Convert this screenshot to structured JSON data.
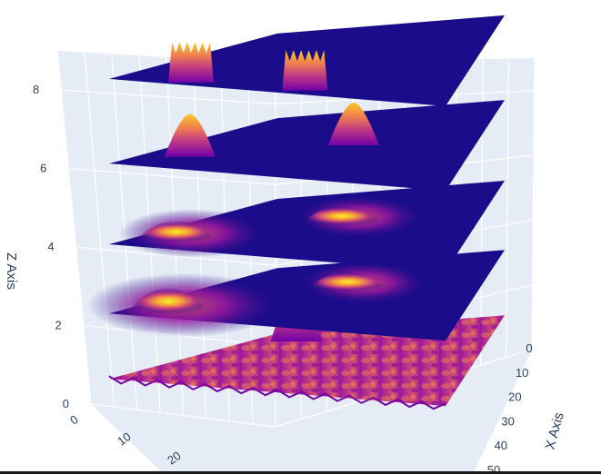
{
  "chart_data": {
    "type": "surface",
    "title": "",
    "xlabel": "X Axis",
    "ylabel": "",
    "zlabel": "Z Axis",
    "x_ticks": [
      "0",
      "10",
      "20",
      "30",
      "40",
      "50"
    ],
    "y_ticks": [
      "0",
      "10",
      "20"
    ],
    "z_ticks": [
      "0",
      "2",
      "4",
      "6",
      "8"
    ],
    "zlim": [
      0,
      9
    ],
    "colorscale": [
      "#0d0887",
      "#46039f",
      "#7201a8",
      "#9c179e",
      "#bd3786",
      "#d8576b",
      "#ed7953",
      "#fb9f3a",
      "#fdca26",
      "#f0f921"
    ],
    "layers": [
      {
        "base_z": 0.3,
        "style": "noisy",
        "peaks": [
          {
            "x": 0.9,
            "y": 0.15,
            "h": 1.0
          }
        ]
      },
      {
        "base_z": 2.0,
        "style": "smooth",
        "peaks": [
          {
            "x": 0.15,
            "y": 0.1,
            "h": 0.9
          },
          {
            "x": 0.6,
            "y": 0.5,
            "h": 0.5
          }
        ]
      },
      {
        "base_z": 3.8,
        "style": "smooth",
        "peaks": [
          {
            "x": 0.2,
            "y": 0.1,
            "h": 0.6
          },
          {
            "x": 0.55,
            "y": 0.5,
            "h": 0.5
          }
        ]
      },
      {
        "base_z": 5.9,
        "style": "peaks",
        "peaks": [
          {
            "x": 0.3,
            "y": 0.1,
            "h": 0.6
          },
          {
            "x": 0.55,
            "y": 0.55,
            "h": 0.6
          }
        ]
      },
      {
        "base_z": 8.1,
        "style": "blocks",
        "peaks": [
          {
            "x": 0.1,
            "y": 0.2,
            "h": 0.9
          },
          {
            "x": 0.1,
            "y": 0.55,
            "h": 0.9
          }
        ]
      }
    ],
    "grid": true,
    "background": "#e5ecf6"
  }
}
